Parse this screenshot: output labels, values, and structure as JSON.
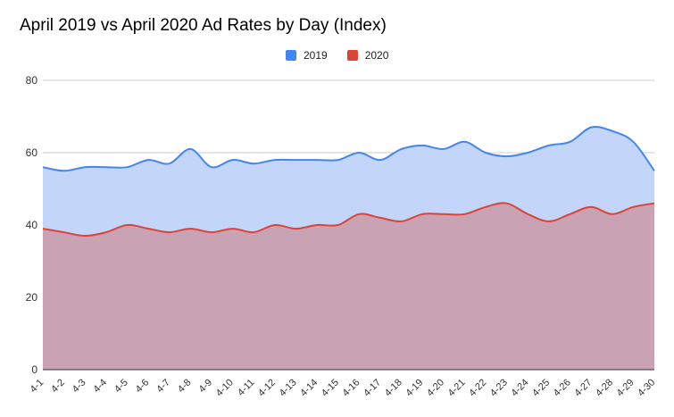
{
  "chart_data": {
    "type": "area",
    "title": "April 2019 vs April 2020 Ad Rates by Day (Index)",
    "xlabel": "",
    "ylabel": "",
    "categories": [
      "4-1",
      "4-2",
      "4-3",
      "4-4",
      "4-5",
      "4-6",
      "4-7",
      "4-8",
      "4-9",
      "4-10",
      "4-11",
      "4-12",
      "4-13",
      "4-14",
      "4-15",
      "4-16",
      "4-17",
      "4-18",
      "4-19",
      "4-20",
      "4-21",
      "4-22",
      "4-23",
      "4-24",
      "4-25",
      "4-26",
      "4-27",
      "4-28",
      "4-29",
      "4-30"
    ],
    "series": [
      {
        "name": "2019",
        "color": "#4285f4",
        "fill": "#c3d5f8",
        "values": [
          56,
          55,
          56,
          56,
          56,
          58,
          57,
          61,
          56,
          58,
          57,
          58,
          58,
          58,
          58,
          60,
          58,
          61,
          62,
          61,
          63,
          60,
          59,
          60,
          62,
          63,
          67,
          66,
          63,
          55
        ]
      },
      {
        "name": "2020",
        "color": "#db4437",
        "fill": "#c9a2b4",
        "values": [
          39,
          38,
          37,
          38,
          40,
          39,
          38,
          39,
          38,
          39,
          38,
          40,
          39,
          40,
          40,
          43,
          42,
          41,
          43,
          43,
          43,
          45,
          46,
          43,
          41,
          43,
          45,
          43,
          45,
          46
        ]
      }
    ],
    "ylim": [
      0,
      80
    ],
    "yticks": [
      0,
      20,
      40,
      60,
      80
    ],
    "grid": true,
    "legend_position": "top"
  }
}
